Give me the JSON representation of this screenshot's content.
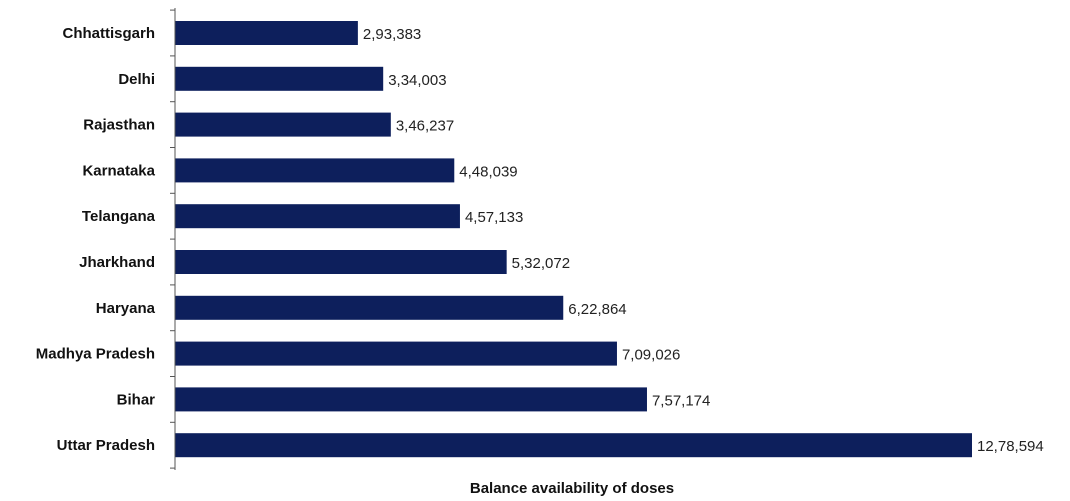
{
  "chart_data": {
    "type": "bar",
    "orientation": "horizontal",
    "categories": [
      "Chhattisgarh",
      "Delhi",
      "Rajasthan",
      "Karnataka",
      "Telangana",
      "Jharkhand",
      "Haryana",
      "Madhya Pradesh",
      "Bihar",
      "Uttar Pradesh"
    ],
    "values": [
      293383,
      334003,
      346237,
      448039,
      457133,
      532072,
      622864,
      709026,
      757174,
      1278594
    ],
    "value_labels": [
      "2,93,383",
      "3,34,003",
      "3,46,237",
      "4,48,039",
      "4,57,133",
      "5,32,072",
      "6,22,864",
      "7,09,026",
      "7,57,174",
      "12,78,594"
    ],
    "xlabel": "Balance availability of doses",
    "ylabel": "",
    "xlim": [
      0,
      1278594
    ],
    "grid": false,
    "legend": "none",
    "bar_color": "#0d1f5c"
  }
}
